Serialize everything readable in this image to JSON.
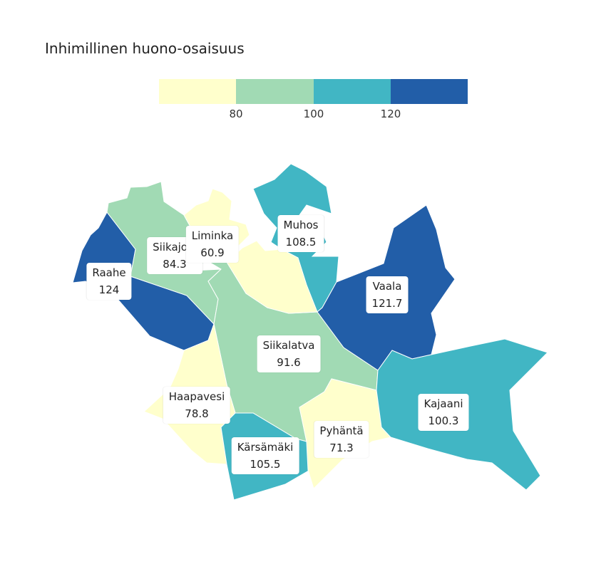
{
  "title": "Inhimillinen huono-osaisuus",
  "legend": {
    "colors": [
      "#ffffcc",
      "#a1dab4",
      "#41b6c4",
      "#225ea8"
    ],
    "ticks": [
      "80",
      "100",
      "120"
    ]
  },
  "regions": [
    {
      "name": "Raahe",
      "value": "124",
      "color": "#225ea8"
    },
    {
      "name": "Siikajoki",
      "value": "84.3",
      "color": "#a1dab4"
    },
    {
      "name": "Liminka",
      "value": "60.9",
      "color": "#ffffcc"
    },
    {
      "name": "Muhos",
      "value": "108.5",
      "color": "#41b6c4"
    },
    {
      "name": "Vaala",
      "value": "121.7",
      "color": "#225ea8"
    },
    {
      "name": "Siikalatva",
      "value": "91.6",
      "color": "#a1dab4"
    },
    {
      "name": "Haapavesi",
      "value": "78.8",
      "color": "#ffffcc"
    },
    {
      "name": "Kajaani",
      "value": "100.3",
      "color": "#41b6c4"
    },
    {
      "name": "Pyhäntä",
      "value": "71.3",
      "color": "#ffffcc"
    },
    {
      "name": "Kärsämäki",
      "value": "105.5",
      "color": "#41b6c4"
    }
  ]
}
